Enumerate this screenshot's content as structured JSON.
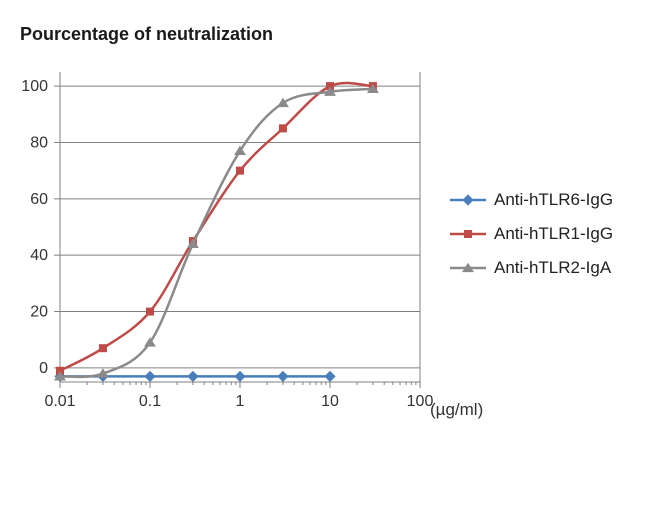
{
  "title": "Pourcentage of neutralization",
  "xaxis_unit": "(µg/ml)",
  "chart": {
    "type": "line",
    "background_color": "#ffffff",
    "plot_border_color": "#808080",
    "grid_color": "#808080",
    "axis_line_width": 1,
    "grid_line_width": 1,
    "x_scale": "log",
    "x_min": 0.01,
    "x_max": 100,
    "x_ticks": [
      0.01,
      0.1,
      1,
      10,
      100
    ],
    "x_tick_labels": [
      "0.01",
      "0.1",
      "1",
      "10",
      "100"
    ],
    "y_scale": "linear",
    "y_min": -5,
    "y_max": 105,
    "y_ticks": [
      0,
      20,
      40,
      60,
      80,
      100
    ],
    "y_tick_labels": [
      "0",
      "20",
      "40",
      "60",
      "80",
      "100"
    ],
    "y_gridlines": [
      0,
      20,
      40,
      60,
      80,
      100
    ],
    "tick_label_fontsize": 16,
    "title_fontsize": 18,
    "title_fontweight": "600",
    "series": [
      {
        "name": "Anti-hTLR6-IgG",
        "color": "#4a7ebb",
        "marker": "diamond",
        "marker_fill": "#4a7ebb",
        "marker_size": 7,
        "line_width": 2.5,
        "x": [
          0.01,
          0.03,
          0.1,
          0.3,
          1,
          3,
          10
        ],
        "y": [
          -3,
          -3,
          -3,
          -3,
          -3,
          -3,
          -3
        ]
      },
      {
        "name": "Anti-hTLR1-IgG",
        "color": "#be4b48",
        "marker": "square",
        "marker_fill": "#be4b48",
        "marker_size": 7,
        "line_width": 2.5,
        "x": [
          0.01,
          0.03,
          0.1,
          0.3,
          1,
          3,
          10,
          30
        ],
        "y": [
          -1,
          7,
          20,
          45,
          70,
          85,
          100,
          100
        ]
      },
      {
        "name": "Anti-hTLR2-IgA",
        "color": "#8a8a8a",
        "marker": "triangle",
        "marker_fill": "#8a8a8a",
        "marker_size": 8,
        "line_width": 2.5,
        "x": [
          0.01,
          0.03,
          0.1,
          0.3,
          1,
          3,
          10,
          30
        ],
        "y": [
          -3,
          -2,
          9,
          44,
          77,
          94,
          98,
          99
        ]
      }
    ],
    "legend": {
      "position": "right",
      "fontsize": 17
    }
  }
}
